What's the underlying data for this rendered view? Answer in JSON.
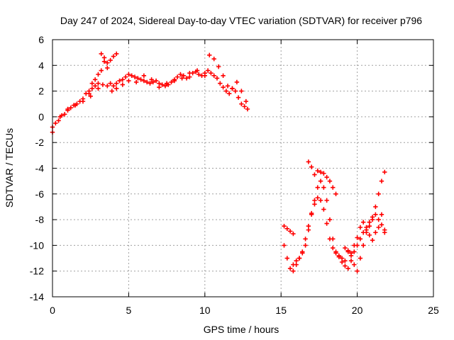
{
  "chart_data": {
    "type": "scatter",
    "title": "Day 247 of 2024, Sidereal Day-to-day VTEC variation (SDTVAR) for receiver p796",
    "xlabel": "GPS time / hours",
    "ylabel": "SDTVAR / TECUs",
    "xlim": [
      0,
      25
    ],
    "ylim": [
      -14,
      6
    ],
    "xticks": [
      0,
      5,
      10,
      15,
      20,
      25
    ],
    "yticks": [
      6,
      4,
      2,
      0,
      -2,
      -4,
      -6,
      -8,
      -10,
      -12,
      -14
    ],
    "grid": true,
    "marker": "+",
    "color": "#ff0000",
    "series": [
      {
        "x": [
          0.0,
          0.2,
          0.4,
          0.6,
          0.8,
          1.0,
          1.2,
          1.4,
          1.6,
          1.8,
          2.0,
          2.2,
          2.4,
          2.6,
          2.8,
          3.0,
          3.2,
          3.4,
          3.6,
          3.8,
          4.0,
          4.2,
          4.4,
          4.6,
          4.8,
          5.0,
          5.2,
          5.4,
          5.6,
          5.8,
          6.0,
          6.2,
          6.4,
          6.6,
          6.8,
          7.0,
          7.2,
          7.4,
          7.6,
          7.8,
          8.0,
          8.2,
          8.4,
          8.6,
          8.8,
          9.0,
          9.2,
          9.4,
          9.6,
          9.8,
          10.0,
          10.2,
          10.4,
          10.6,
          10.8,
          11.0,
          11.2,
          11.4,
          11.6,
          11.8,
          12.0,
          12.2,
          12.4,
          12.6,
          12.8
        ],
        "y": [
          -1.2,
          -0.5,
          -0.3,
          0.1,
          0.2,
          0.5,
          0.7,
          0.9,
          1.0,
          1.2,
          1.4,
          1.8,
          2.0,
          2.6,
          2.9,
          3.3,
          3.6,
          4.3,
          3.8,
          2.6,
          2.4,
          2.6,
          2.8,
          2.9,
          3.1,
          3.3,
          3.2,
          3.1,
          3.0,
          2.9,
          2.8,
          2.7,
          2.6,
          2.7,
          2.8,
          2.6,
          2.5,
          2.4,
          2.5,
          2.7,
          2.9,
          3.1,
          3.3,
          3.2,
          3.0,
          3.1,
          3.4,
          3.5,
          3.3,
          3.2,
          3.4,
          3.6,
          3.4,
          3.2,
          3.0,
          2.6,
          2.3,
          2.0,
          1.8,
          2.2,
          2.0,
          1.5,
          1.0,
          0.8,
          0.6
        ]
      },
      {
        "x": [
          0.0,
          0.5,
          1.0,
          1.5,
          2.0,
          2.5,
          3.0,
          3.3,
          3.6,
          3.9,
          4.2,
          4.6,
          5.0,
          5.5,
          6.0,
          6.5,
          7.0,
          7.5,
          8.0,
          8.5,
          9.0,
          9.5,
          10.0,
          10.3,
          10.6,
          10.9,
          11.2,
          11.5,
          11.8,
          12.1,
          12.4,
          12.7
        ],
        "y": [
          -0.8,
          0.0,
          0.6,
          0.9,
          1.2,
          1.6,
          2.2,
          2.5,
          2.4,
          2.0,
          2.2,
          2.5,
          2.8,
          2.7,
          3.2,
          2.9,
          2.3,
          2.6,
          2.8,
          3.0,
          3.4,
          3.6,
          3.2,
          4.8,
          4.5,
          3.9,
          3.2,
          2.4,
          2.2,
          2.7,
          2.0,
          1.2
        ]
      },
      {
        "x": [
          2.4,
          2.6,
          2.8,
          3.0,
          3.2,
          3.4,
          3.6,
          3.8,
          4.0,
          4.2
        ],
        "y": [
          1.8,
          2.2,
          2.4,
          2.6,
          4.9,
          4.6,
          4.2,
          4.4,
          4.7,
          4.9
        ]
      },
      {
        "x": [
          15.2,
          15.4,
          15.6,
          15.8,
          16.0,
          16.2,
          16.4,
          16.6,
          16.8,
          17.0,
          17.2,
          17.4,
          17.6,
          17.8,
          18.0,
          18.2,
          18.4,
          18.6,
          18.8,
          19.0,
          19.2,
          19.4,
          19.6,
          19.8,
          20.0,
          20.2,
          20.4,
          20.6,
          20.8,
          21.0,
          21.2,
          21.4,
          21.6,
          21.8
        ],
        "y": [
          -10.0,
          -11.0,
          -11.8,
          -12.0,
          -11.5,
          -11.0,
          -10.5,
          -9.5,
          -8.5,
          -7.5,
          -6.5,
          -5.5,
          -5.0,
          -5.5,
          -6.5,
          -8.0,
          -9.5,
          -10.5,
          -10.8,
          -11.0,
          -11.2,
          -10.5,
          -10.8,
          -11.5,
          -12.0,
          -11.0,
          -10.0,
          -9.0,
          -8.5,
          -8.0,
          -7.0,
          -6.0,
          -5.0,
          -4.3
        ]
      },
      {
        "x": [
          15.8,
          16.0,
          16.2,
          16.4,
          16.6,
          16.8,
          17.0,
          17.2,
          17.4,
          17.6,
          17.8,
          18.0,
          18.2,
          18.4,
          18.6,
          18.8,
          19.0,
          19.2,
          19.4,
          19.6,
          19.8,
          20.0,
          20.2,
          20.4,
          20.6,
          20.8,
          21.0,
          21.2,
          21.4,
          21.6,
          21.8
        ],
        "y": [
          -11.5,
          -11.2,
          -11.0,
          -10.6,
          -10.0,
          -8.8,
          -7.6,
          -6.8,
          -6.3,
          -6.5,
          -7.2,
          -8.3,
          -9.5,
          -10.2,
          -10.6,
          -10.9,
          -11.3,
          -11.6,
          -11.8,
          -11.2,
          -10.5,
          -10.0,
          -9.5,
          -9.0,
          -8.6,
          -8.2,
          -7.8,
          -7.6,
          -8.0,
          -8.4,
          -8.8
        ]
      },
      {
        "x": [
          15.2,
          15.4,
          15.6,
          15.8,
          16.8,
          17.0,
          17.2,
          17.4,
          17.6,
          17.8,
          18.0,
          18.2,
          18.4,
          18.6
        ],
        "y": [
          -8.5,
          -8.7,
          -8.9,
          -9.1,
          -3.5,
          -3.9,
          -4.5,
          -4.2,
          -4.3,
          -4.4,
          -4.7,
          -5.0,
          -5.5,
          -6.0
        ]
      },
      {
        "x": [
          19.2,
          19.4,
          19.6,
          19.8,
          20.0,
          20.2,
          20.4,
          20.6,
          20.8,
          21.0,
          21.2,
          21.4,
          21.6,
          21.8
        ],
        "y": [
          -10.2,
          -10.4,
          -10.6,
          -10.0,
          -9.4,
          -8.6,
          -8.2,
          -8.8,
          -9.2,
          -9.6,
          -9.0,
          -8.6,
          -7.6,
          -9.0
        ]
      }
    ]
  }
}
